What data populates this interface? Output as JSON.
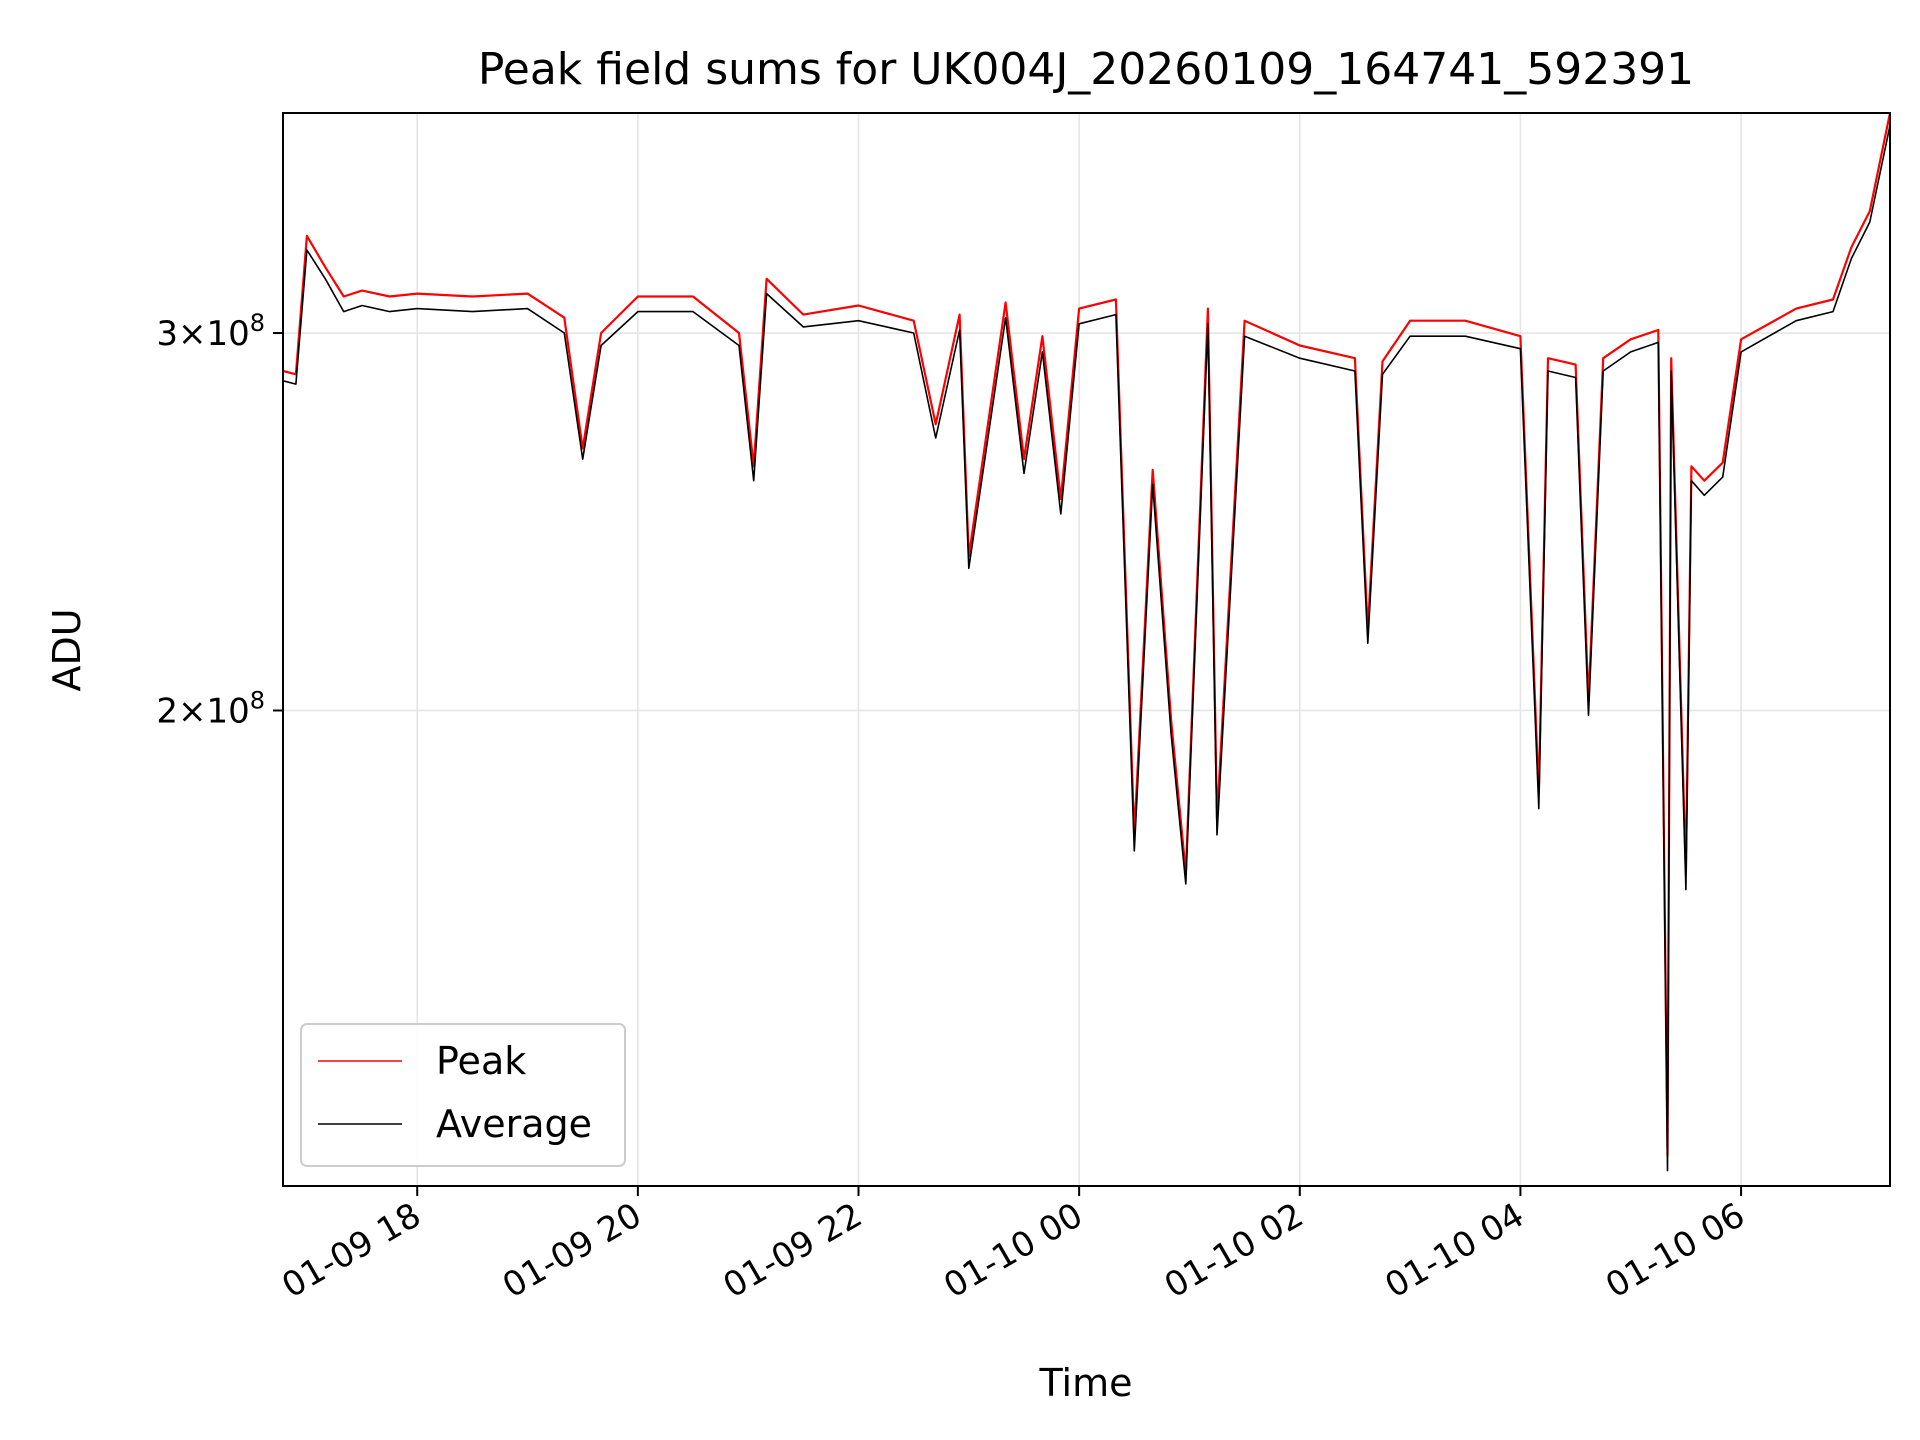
{
  "chart_data": {
    "type": "line",
    "title": "Peak field sums for UK004J_20260109_164741_592391",
    "xlabel": "Time",
    "ylabel": "ADU",
    "x_ticks": [
      "01-09 18",
      "01-09 20",
      "01-09 22",
      "01-10 00",
      "01-10 02",
      "01-10 04",
      "01-10 06"
    ],
    "y_ticks": [
      {
        "base": "2",
        "exp": "8",
        "value": 200000000
      },
      {
        "base": "3",
        "exp": "8",
        "value": 300000000
      }
    ],
    "xlim": [
      "2026-01-09 16:47",
      "2026-01-10 07:21"
    ],
    "ylim": [
      120000000,
      380000000
    ],
    "yscale": "log",
    "grid": true,
    "legend_position": "lower left",
    "colors": {
      "peak": "#ff0000",
      "average": "#000000",
      "grid": "#e5e5e5"
    },
    "x": [
      "01-09 16:47",
      "01-09 16:54",
      "01-09 17:00",
      "01-09 17:10",
      "01-09 17:20",
      "01-09 17:30",
      "01-09 17:45",
      "01-09 18:00",
      "01-09 18:30",
      "01-09 19:00",
      "01-09 19:20",
      "01-09 19:30",
      "01-09 19:40",
      "01-09 20:00",
      "01-09 20:30",
      "01-09 20:55",
      "01-09 21:03",
      "01-09 21:10",
      "01-09 21:30",
      "01-09 22:00",
      "01-09 22:30",
      "01-09 22:42",
      "01-09 22:55",
      "01-09 23:00",
      "01-09 23:20",
      "01-09 23:30",
      "01-09 23:40",
      "01-09 23:50",
      "01-10 00:00",
      "01-10 00:20",
      "01-10 00:30",
      "01-10 00:40",
      "01-10 00:50",
      "01-10 00:58",
      "01-10 01:10",
      "01-10 01:15",
      "01-10 01:30",
      "01-10 02:00",
      "01-10 02:30",
      "01-10 02:37",
      "01-10 02:45",
      "01-10 03:00",
      "01-10 03:30",
      "01-10 04:00",
      "01-10 04:10",
      "01-10 04:15",
      "01-10 04:30",
      "01-10 04:37",
      "01-10 04:45",
      "01-10 05:00",
      "01-10 05:15",
      "01-10 05:20",
      "01-10 05:22",
      "01-10 05:30",
      "01-10 05:33",
      "01-10 05:40",
      "01-10 05:50",
      "01-10 06:00",
      "01-10 06:30",
      "01-10 06:50",
      "01-10 07:00",
      "01-10 07:10",
      "01-10 07:21"
    ],
    "series": [
      {
        "name": "Peak",
        "color": "#ff0000",
        "values": [
          288000000,
          287000000,
          333000000,
          322000000,
          312000000,
          314000000,
          312000000,
          313000000,
          312000000,
          313000000,
          305000000,
          265000000,
          300000000,
          312000000,
          312000000,
          300000000,
          260000000,
          318000000,
          306000000,
          309000000,
          304000000,
          272000000,
          306000000,
          236000000,
          310000000,
          262000000,
          299000000,
          251000000,
          308000000,
          311000000,
          175000000,
          259000000,
          198000000,
          168000000,
          308000000,
          178000000,
          304000000,
          296000000,
          292000000,
          218000000,
          291000000,
          304000000,
          304000000,
          299000000,
          183000000,
          292000000,
          290000000,
          202000000,
          292000000,
          298000000,
          301000000,
          124000000,
          292000000,
          168000000,
          260000000,
          256000000,
          261000000,
          298000000,
          308000000,
          311000000,
          329000000,
          342000000,
          380000000
        ]
      },
      {
        "name": "Average",
        "color": "#000000",
        "values": [
          285000000,
          284000000,
          328000000,
          318000000,
          307000000,
          309000000,
          307000000,
          308000000,
          307000000,
          308000000,
          300000000,
          262000000,
          296000000,
          307000000,
          307000000,
          296000000,
          256000000,
          313000000,
          302000000,
          304000000,
          300000000,
          268000000,
          301000000,
          233000000,
          305000000,
          258000000,
          294000000,
          247000000,
          303000000,
          306000000,
          172000000,
          255000000,
          195000000,
          166000000,
          303000000,
          175000000,
          299000000,
          292000000,
          288000000,
          215000000,
          287000000,
          299000000,
          299000000,
          295000000,
          180000000,
          288000000,
          286000000,
          199000000,
          288000000,
          294000000,
          297000000,
          122000000,
          288000000,
          165000000,
          256000000,
          252000000,
          257000000,
          294000000,
          304000000,
          307000000,
          325000000,
          338000000,
          375000000
        ]
      }
    ]
  }
}
